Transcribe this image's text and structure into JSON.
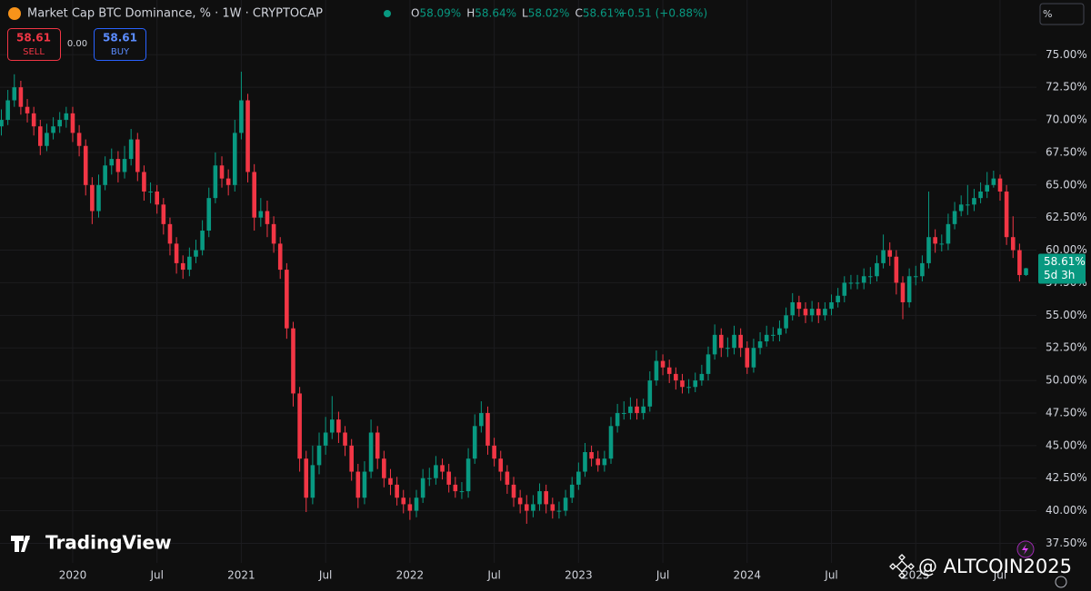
{
  "header": {
    "title": "Market Cap BTC Dominance, % · 1W · CRYPTOCAP",
    "ohlc": [
      {
        "key": "O",
        "value": "58.09%"
      },
      {
        "key": "H",
        "value": "58.64%"
      },
      {
        "key": "L",
        "value": "58.02%"
      },
      {
        "key": "C",
        "value": "58.61%"
      }
    ],
    "change": "+0.51 (+0.88%)",
    "scale_button": "%"
  },
  "trade_panel": {
    "sell_price": "58.61",
    "sell_label": "SELL",
    "spread": "0.00",
    "buy_price": "58.61",
    "buy_label": "BUY"
  },
  "branding": "TradingView",
  "watermark": "@ ALTCOIN2025",
  "chart_data": {
    "type": "candlestick",
    "categories": [
      null,
      null,
      null,
      null,
      null,
      null,
      null,
      null,
      null,
      null,
      null,
      "2020",
      null,
      null,
      null,
      null,
      null,
      null,
      null,
      null,
      null,
      null,
      null,
      null,
      "Jul",
      null,
      null,
      null,
      null,
      null,
      null,
      null,
      null,
      null,
      null,
      null,
      null,
      "2021",
      null,
      null,
      null,
      null,
      null,
      null,
      null,
      null,
      null,
      null,
      null,
      null,
      "Jul",
      null,
      null,
      null,
      null,
      null,
      null,
      null,
      null,
      null,
      null,
      null,
      null,
      "2022",
      null,
      null,
      null,
      null,
      null,
      null,
      null,
      null,
      null,
      null,
      null,
      null,
      "Jul",
      null,
      null,
      null,
      null,
      null,
      null,
      null,
      null,
      null,
      null,
      null,
      null,
      "2023",
      null,
      null,
      null,
      null,
      null,
      null,
      null,
      null,
      null,
      null,
      null,
      null,
      "Jul",
      null,
      null,
      null,
      null,
      null,
      null,
      null,
      null,
      null,
      null,
      null,
      null,
      "2024",
      null,
      null,
      null,
      null,
      null,
      null,
      null,
      null,
      null,
      null,
      null,
      null,
      "Jul",
      null,
      null,
      null,
      null,
      null,
      null,
      null,
      null,
      null,
      null,
      null,
      null,
      "2025",
      null,
      null,
      null,
      null,
      null,
      null,
      null,
      null,
      null,
      null,
      null,
      null,
      "Jul",
      null,
      null,
      null,
      null
    ],
    "open": [
      69.5,
      70,
      71.5,
      72.5,
      71,
      70.5,
      69.5,
      68,
      69,
      69.5,
      70,
      70.5,
      69,
      68,
      65,
      63,
      65,
      66.5,
      67,
      66,
      67,
      68.5,
      66,
      64.5,
      64.5,
      63.5,
      62,
      60.5,
      59,
      58.5,
      59.5,
      60,
      61.5,
      64,
      66.5,
      65.5,
      65,
      69,
      71.5,
      66,
      62.5,
      63,
      62,
      60.5,
      58.5,
      54,
      49,
      44,
      41,
      43.5,
      45,
      46,
      47,
      46,
      45,
      43,
      41,
      43,
      46,
      44,
      42.5,
      42,
      41,
      40.5,
      40,
      41,
      42.5,
      42.5,
      43.5,
      43,
      42,
      41.5,
      41.5,
      44,
      46.5,
      47.5,
      45,
      44,
      43,
      42,
      41,
      40.5,
      40,
      40.5,
      41.5,
      40.5,
      40,
      40,
      41,
      42,
      43,
      44.5,
      44,
      43.5,
      44,
      46.5,
      47.5,
      47.5,
      48,
      47.5,
      48,
      50,
      51.5,
      51,
      50.5,
      50,
      49.5,
      49.5,
      50,
      50.5,
      52,
      53.5,
      52.5,
      52.5,
      53.5,
      52.5,
      51,
      52.5,
      53,
      53.5,
      53.5,
      54,
      55,
      56,
      55.5,
      55,
      55.5,
      55,
      55.5,
      56,
      56.5,
      57.5,
      57.5,
      57.5,
      58,
      58,
      59,
      60,
      59.5,
      57.5,
      56,
      58,
      58,
      59,
      61,
      60.5,
      60.5,
      62,
      63,
      63.5,
      63.5,
      64,
      64.5,
      65,
      65.5,
      64.5,
      61,
      60,
      58.09
    ],
    "high": [
      70.8,
      72.3,
      73.5,
      73,
      71.6,
      71,
      70,
      69.7,
      70.2,
      70.6,
      71,
      71,
      69.6,
      68.5,
      65.6,
      65.8,
      67.2,
      67.8,
      67.6,
      68,
      69.3,
      69,
      66.5,
      65.2,
      65,
      64,
      62.5,
      61,
      59.6,
      60.2,
      60.8,
      62.3,
      64.8,
      67.5,
      67.2,
      66.2,
      70,
      73.7,
      72,
      66.6,
      64,
      63.8,
      62.6,
      61,
      59,
      54.5,
      49.5,
      44.6,
      45,
      46,
      47.2,
      48.8,
      47.6,
      46.5,
      45.5,
      43.6,
      43.8,
      47,
      46.5,
      44.6,
      43.2,
      42.6,
      41.6,
      41,
      41.6,
      43.2,
      43.3,
      44.2,
      44,
      43.6,
      42.6,
      42.2,
      44.8,
      47.4,
      48.4,
      48,
      45.6,
      44.6,
      43.5,
      42.6,
      41.6,
      41.2,
      41.2,
      42.1,
      42,
      41,
      40.7,
      41.6,
      42.6,
      43.7,
      45.2,
      45,
      44.6,
      44.6,
      47.2,
      48.2,
      48.4,
      48.7,
      48.6,
      48.6,
      50.7,
      52.3,
      52,
      51.6,
      51,
      50.5,
      50.1,
      50.6,
      51.2,
      52.6,
      54.3,
      54,
      53.3,
      54.2,
      54,
      53,
      53.2,
      53.7,
      54.2,
      54.1,
      54.6,
      55.6,
      56.7,
      56.5,
      56,
      56.1,
      56,
      56,
      56.6,
      57.1,
      58,
      58.1,
      58.1,
      58.6,
      58.7,
      59.6,
      61.2,
      60.6,
      60,
      58,
      58.6,
      58.8,
      59.6,
      64.5,
      61.6,
      61.2,
      62.8,
      63.7,
      64.2,
      65,
      64.7,
      65.2,
      66,
      66.1,
      65.8,
      65,
      62.6,
      60.5,
      58.64
    ],
    "low": [
      68.8,
      69.6,
      71,
      70.4,
      69.8,
      68.8,
      67.3,
      67.6,
      68.5,
      69,
      69.4,
      68.3,
      67.2,
      64.2,
      62,
      62.5,
      64.6,
      65.8,
      65.2,
      65.5,
      66.5,
      65.3,
      63.8,
      63.6,
      62.8,
      61.2,
      59.6,
      58.2,
      57.8,
      58,
      59,
      59.6,
      61,
      63.6,
      64.8,
      64.2,
      64.5,
      68.5,
      65.2,
      61.5,
      61.8,
      61,
      59.8,
      57.8,
      53.2,
      48,
      43,
      39.9,
      40.5,
      42.8,
      44.3,
      45.5,
      45.2,
      44.2,
      42.3,
      40.2,
      40.5,
      42.5,
      43.2,
      41.8,
      41.2,
      40.4,
      39.8,
      39.3,
      39.5,
      40.6,
      41.9,
      42,
      42.4,
      41.4,
      41,
      40.9,
      41,
      43.6,
      46,
      44.3,
      43.4,
      42.3,
      41.3,
      40.3,
      39.8,
      39,
      39.5,
      40,
      39.8,
      39.4,
      39.4,
      39.6,
      40.6,
      41.6,
      42.6,
      43.4,
      43,
      43,
      43.6,
      46,
      47,
      47,
      47,
      47,
      47.6,
      49.6,
      50.4,
      49.8,
      49.3,
      49,
      49,
      49.1,
      49.6,
      50,
      51.6,
      51.8,
      51.8,
      52,
      51.8,
      50.5,
      50.6,
      52,
      52.6,
      53,
      53,
      53.6,
      54.6,
      54.9,
      54.4,
      54.5,
      54.4,
      54.6,
      55,
      55.6,
      56,
      57,
      57,
      57,
      57.4,
      57.6,
      58.6,
      58.8,
      56.6,
      54.7,
      55.6,
      57.3,
      57.6,
      58.6,
      59.8,
      59.9,
      60,
      61.6,
      62.6,
      62.7,
      63,
      63.6,
      64,
      64.8,
      63.8,
      60.4,
      59.4,
      57.6,
      58.02
    ],
    "close": [
      70,
      71.5,
      72.5,
      71,
      70.5,
      69.5,
      68,
      69,
      69.5,
      70,
      70.5,
      69,
      68,
      65,
      63,
      65,
      66.5,
      67,
      66,
      67,
      68.5,
      66,
      64.5,
      64.5,
      63.5,
      62,
      60.5,
      59,
      58.5,
      59.5,
      60,
      61.5,
      64,
      66.5,
      65.5,
      65,
      69,
      71.5,
      66,
      62.5,
      63,
      62,
      60.5,
      58.5,
      54,
      49,
      44,
      41,
      43.5,
      45,
      46,
      47,
      46,
      45,
      43,
      41,
      43,
      46,
      44,
      42.5,
      42,
      41,
      40.5,
      40,
      41,
      42.5,
      42.5,
      43.5,
      43,
      42,
      41.5,
      41.5,
      44,
      46.5,
      47.5,
      45,
      44,
      43,
      42,
      41,
      40.5,
      40,
      40.5,
      41.5,
      40.5,
      40,
      40,
      41,
      42,
      43,
      44.5,
      44,
      43.5,
      44,
      46.5,
      47.5,
      47.5,
      48,
      47.5,
      48,
      50,
      51.5,
      51,
      50.5,
      50,
      49.5,
      49.5,
      50,
      50.5,
      52,
      53.5,
      52.5,
      52.5,
      53.5,
      52.5,
      51,
      52.5,
      53,
      53.5,
      53.5,
      54,
      55,
      56,
      55.5,
      55,
      55.5,
      55,
      55.5,
      56,
      56.5,
      57.5,
      57.5,
      57.5,
      58,
      58,
      59,
      60,
      59.5,
      57.5,
      56,
      58,
      58,
      59,
      61,
      60.5,
      60.5,
      62,
      63,
      63.5,
      63.5,
      64,
      64.5,
      65,
      65.5,
      64.5,
      61,
      60,
      58.09,
      58.61
    ],
    "up_color": "#089981",
    "down_color": "#f23645",
    "ylim": [
      36,
      79.2
    ],
    "yticks": [
      {
        "value": 37.5,
        "label": "37.50%"
      },
      {
        "value": 40,
        "label": "40.00%"
      },
      {
        "value": 42.5,
        "label": "42.50%"
      },
      {
        "value": 45,
        "label": "45.00%"
      },
      {
        "value": 47.5,
        "label": "47.50%"
      },
      {
        "value": 50,
        "label": "50.00%"
      },
      {
        "value": 52.5,
        "label": "52.50%"
      },
      {
        "value": 55,
        "label": "55.00%"
      },
      {
        "value": 57.5,
        "label": "57.50%"
      },
      {
        "value": 60,
        "label": "60.00%"
      },
      {
        "value": 62.5,
        "label": "62.50%"
      },
      {
        "value": 65,
        "label": "65.00%"
      },
      {
        "value": 67.5,
        "label": "67.50%"
      },
      {
        "value": 70,
        "label": "70.00%"
      },
      {
        "value": 72.5,
        "label": "72.50%"
      },
      {
        "value": 75,
        "label": "75.00%"
      }
    ],
    "grid": true,
    "last_price": {
      "value": 58.61,
      "label": "58.61%",
      "countdown": "5d 3h"
    }
  }
}
